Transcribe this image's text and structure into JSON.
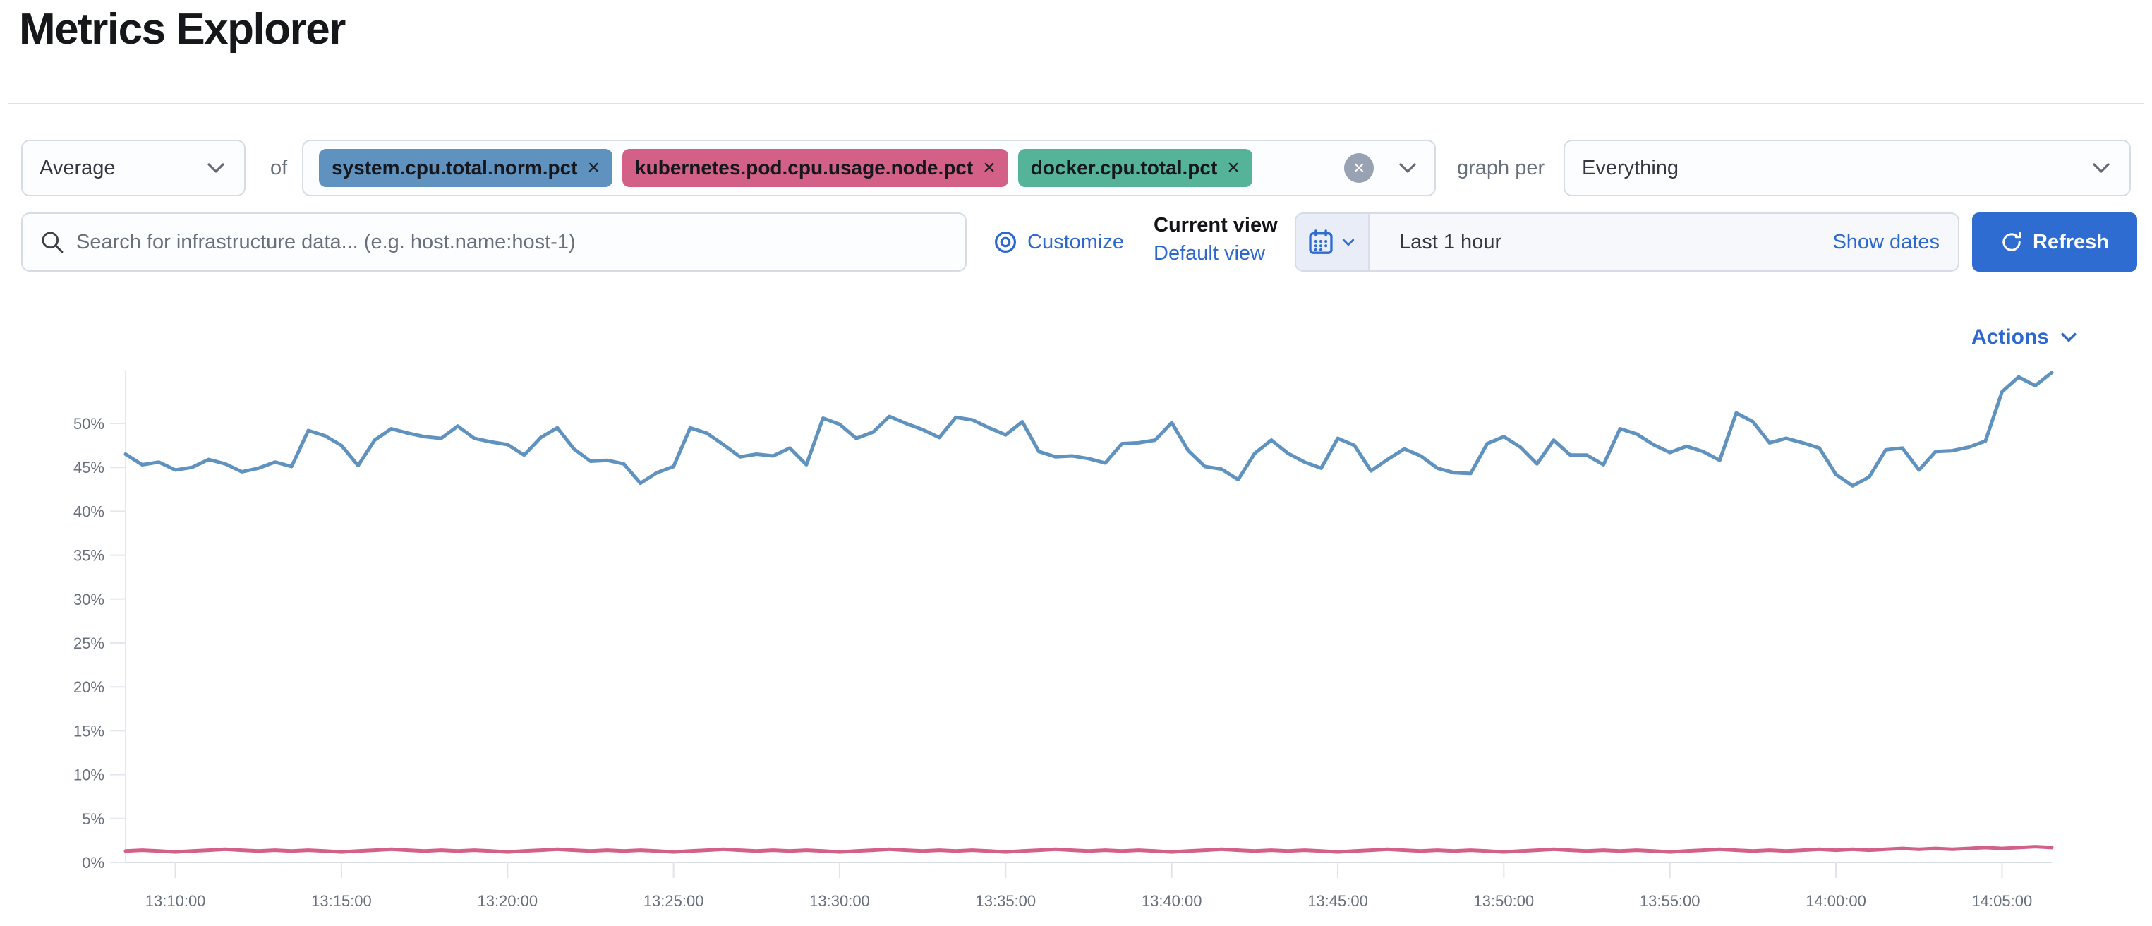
{
  "header": {
    "title": "Metrics Explorer"
  },
  "toolbar": {
    "aggregation_value": "Average",
    "of_label": "of",
    "metrics": [
      {
        "label": "system.cpu.total.norm.pct",
        "color": "#6092C0"
      },
      {
        "label": "kubernetes.pod.cpu.usage.node.pct",
        "color": "#D36086"
      },
      {
        "label": "docker.cpu.total.pct",
        "color": "#54B399"
      }
    ],
    "remove_icon": "×",
    "clear_icon": "×",
    "graph_per_label": "graph per",
    "graph_per_value": "Everything"
  },
  "searchbar": {
    "placeholder": "Search for infrastructure data... (e.g. host.name:host-1)",
    "customize_label": "Customize",
    "current_view_label": "Current view",
    "default_view_label": "Default view"
  },
  "datepicker": {
    "value": "Last 1 hour",
    "show_dates_label": "Show dates",
    "refresh_label": "Refresh"
  },
  "actions_label": "Actions",
  "colors": {
    "primary_blue": "#2e6cd1",
    "link_blue": "#2d68cf",
    "series_blue": "#6092C0",
    "series_pink": "#D36086",
    "badge_green": "#54B399",
    "axis_text": "#69707d"
  },
  "chart_data": {
    "type": "line",
    "title": "",
    "xlabel": "",
    "ylabel": "",
    "grid": false,
    "legend": "none",
    "ylim": [
      0,
      55
    ],
    "x_start": "13:08:30",
    "x_step_seconds": 30,
    "x_end": "14:06:30",
    "x_tick_labels": [
      "13:10:00",
      "13:15:00",
      "13:20:00",
      "13:25:00",
      "13:30:00",
      "13:35:00",
      "13:40:00",
      "13:45:00",
      "13:50:00",
      "13:55:00",
      "14:00:00",
      "14:05:00"
    ],
    "y_ticks": [
      {
        "label": "0%",
        "value": 0
      },
      {
        "label": "5%",
        "value": 5
      },
      {
        "label": "10%",
        "value": 10
      },
      {
        "label": "15%",
        "value": 15
      },
      {
        "label": "20%",
        "value": 20
      },
      {
        "label": "25%",
        "value": 25
      },
      {
        "label": "30%",
        "value": 30
      },
      {
        "label": "35%",
        "value": 35
      },
      {
        "label": "40%",
        "value": 40
      },
      {
        "label": "45%",
        "value": 45
      },
      {
        "label": "50%",
        "value": 50
      }
    ],
    "series": [
      {
        "name": "system.cpu.total.norm.pct",
        "color": "#6092C0",
        "unit": "%",
        "values": [
          46.5,
          45.3,
          45.6,
          44.7,
          45.0,
          45.9,
          45.4,
          44.5,
          44.9,
          45.6,
          45.1,
          49.2,
          48.6,
          47.5,
          45.2,
          48.1,
          49.4,
          48.9,
          48.5,
          48.3,
          49.7,
          48.3,
          47.9,
          47.6,
          46.4,
          48.4,
          49.5,
          47.1,
          45.7,
          45.8,
          45.4,
          43.2,
          44.4,
          45.1,
          49.5,
          48.9,
          47.6,
          46.2,
          46.5,
          46.3,
          47.2,
          45.3,
          50.6,
          49.9,
          48.3,
          49.0,
          50.8,
          50.0,
          49.3,
          48.4,
          50.7,
          50.4,
          49.5,
          48.7,
          50.2,
          46.8,
          46.2,
          46.3,
          46.0,
          45.5,
          47.7,
          47.8,
          48.1,
          50.1,
          46.9,
          45.1,
          44.8,
          43.6,
          46.6,
          48.1,
          46.6,
          45.6,
          44.9,
          48.3,
          47.5,
          44.6,
          45.9,
          47.1,
          46.3,
          44.9,
          44.4,
          44.3,
          47.7,
          48.5,
          47.3,
          45.4,
          48.1,
          46.4,
          46.4,
          45.3,
          49.4,
          48.8,
          47.6,
          46.7,
          47.4,
          46.8,
          45.8,
          51.2,
          50.2,
          47.8,
          48.3,
          47.8,
          47.2,
          44.2,
          42.9,
          43.9,
          47.0,
          47.2,
          44.7,
          46.8,
          46.9,
          47.3,
          48.0,
          53.6,
          55.3,
          54.3,
          55.8
        ]
      },
      {
        "name": "kubernetes.pod.cpu.usage.node.pct",
        "color": "#D36086",
        "unit": "%",
        "values": [
          1.3,
          1.4,
          1.3,
          1.2,
          1.3,
          1.4,
          1.5,
          1.4,
          1.3,
          1.4,
          1.3,
          1.4,
          1.3,
          1.2,
          1.3,
          1.4,
          1.5,
          1.4,
          1.3,
          1.4,
          1.3,
          1.4,
          1.3,
          1.2,
          1.3,
          1.4,
          1.5,
          1.4,
          1.3,
          1.4,
          1.3,
          1.4,
          1.3,
          1.2,
          1.3,
          1.4,
          1.5,
          1.4,
          1.3,
          1.4,
          1.3,
          1.4,
          1.3,
          1.2,
          1.3,
          1.4,
          1.5,
          1.4,
          1.3,
          1.4,
          1.3,
          1.4,
          1.3,
          1.2,
          1.3,
          1.4,
          1.5,
          1.4,
          1.3,
          1.4,
          1.3,
          1.4,
          1.3,
          1.2,
          1.3,
          1.4,
          1.5,
          1.4,
          1.3,
          1.4,
          1.3,
          1.4,
          1.3,
          1.2,
          1.3,
          1.4,
          1.5,
          1.4,
          1.3,
          1.4,
          1.3,
          1.4,
          1.3,
          1.2,
          1.3,
          1.4,
          1.5,
          1.4,
          1.3,
          1.4,
          1.3,
          1.4,
          1.3,
          1.2,
          1.3,
          1.4,
          1.5,
          1.4,
          1.3,
          1.4,
          1.3,
          1.4,
          1.5,
          1.4,
          1.5,
          1.4,
          1.5,
          1.6,
          1.5,
          1.6,
          1.5,
          1.6,
          1.7,
          1.6,
          1.7,
          1.8,
          1.7
        ]
      }
    ]
  }
}
